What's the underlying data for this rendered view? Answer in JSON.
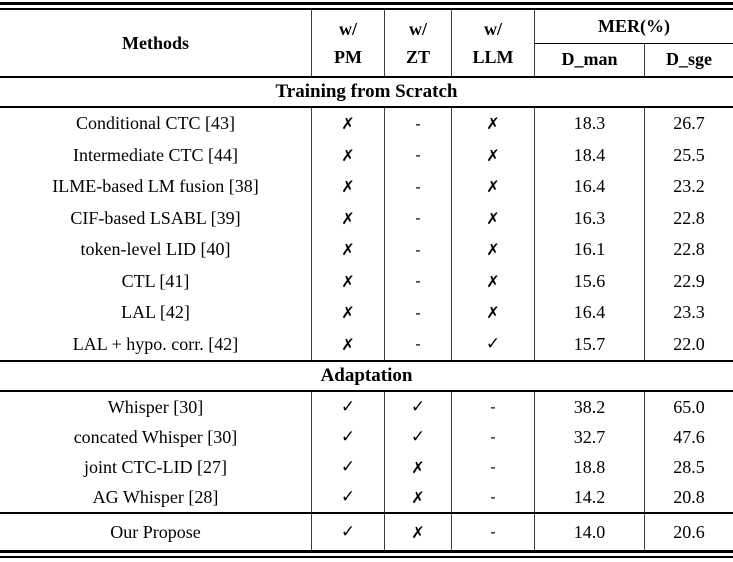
{
  "symbols": {
    "check": "✓",
    "cross": "✗",
    "dash": "-"
  },
  "table": {
    "header": {
      "methods_label": "Methods",
      "groups": [
        {
          "top": "w/",
          "bottom": "PM"
        },
        {
          "top": "w/",
          "bottom": "ZT"
        },
        {
          "top": "w/",
          "bottom": "LLM"
        }
      ],
      "mer_label": "MER(%)",
      "mer_sub": {
        "d_man": "D_man",
        "d_sge": "D_sge"
      }
    },
    "sections": [
      {
        "title": "Training from Scratch",
        "rows": [
          {
            "method": "Conditional CTC [43]",
            "pm": "✗",
            "zt": "-",
            "llm": "✗",
            "d_man": "18.3",
            "d_sge": "26.7"
          },
          {
            "method": "Intermediate CTC [44]",
            "pm": "✗",
            "zt": "-",
            "llm": "✗",
            "d_man": "18.4",
            "d_sge": "25.5"
          },
          {
            "method": "ILME-based LM fusion [38]",
            "pm": "✗",
            "zt": "-",
            "llm": "✗",
            "d_man": "16.4",
            "d_sge": "23.2"
          },
          {
            "method": "CIF-based LSABL [39]",
            "pm": "✗",
            "zt": "-",
            "llm": "✗",
            "d_man": "16.3",
            "d_sge": "22.8"
          },
          {
            "method": "token-level LID [40]",
            "pm": "✗",
            "zt": "-",
            "llm": "✗",
            "d_man": "16.1",
            "d_sge": "22.8"
          },
          {
            "method": "CTL [41]",
            "pm": "✗",
            "zt": "-",
            "llm": "✗",
            "d_man": "15.6",
            "d_sge": "22.9"
          },
          {
            "method": "LAL [42]",
            "pm": "✗",
            "zt": "-",
            "llm": "✗",
            "d_man": "16.4",
            "d_sge": "23.3"
          },
          {
            "method": "LAL + hypo. corr. [42]",
            "pm": "✗",
            "zt": "-",
            "llm": "✓",
            "d_man": "15.7",
            "d_sge": "22.0"
          }
        ]
      },
      {
        "title": "Adaptation",
        "rows": [
          {
            "method": "Whisper [30]",
            "pm": "✓",
            "zt": "✓",
            "llm": "-",
            "d_man": "38.2",
            "d_sge": "65.0"
          },
          {
            "method": "concated Whisper [30]",
            "pm": "✓",
            "zt": "✓",
            "llm": "-",
            "d_man": "32.7",
            "d_sge": "47.6"
          },
          {
            "method": "joint CTC-LID [27]",
            "pm": "✓",
            "zt": "✗",
            "llm": "-",
            "d_man": "18.8",
            "d_sge": "28.5"
          },
          {
            "method": "AG Whisper [28]",
            "pm": "✓",
            "zt": "✗",
            "llm": "-",
            "d_man": "14.2",
            "d_sge": "20.8"
          }
        ]
      }
    ],
    "proposed_row": {
      "method": "Our Propose",
      "pm": "✓",
      "zt": "✗",
      "llm": "-",
      "d_man": "14.0",
      "d_sge": "20.6"
    }
  }
}
